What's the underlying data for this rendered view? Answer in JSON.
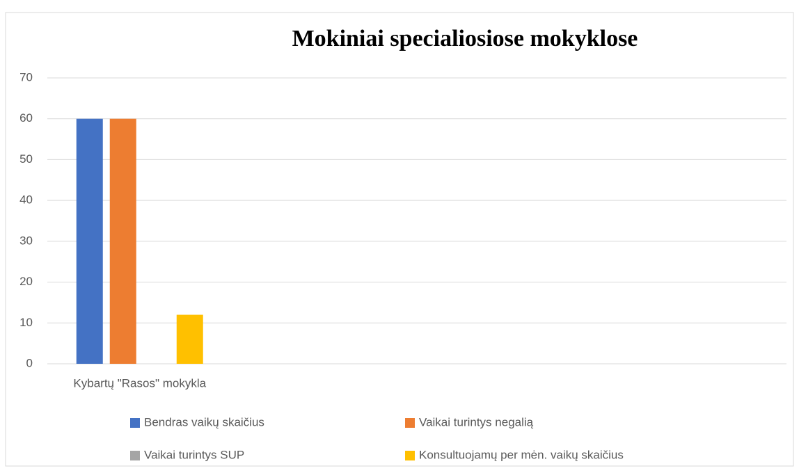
{
  "chart_data": {
    "type": "bar",
    "title": "Mokiniai specialiosiose mokyklose",
    "categories": [
      "Kybartų \"Rasos\" mokykla",
      null,
      null,
      null
    ],
    "series": [
      {
        "name": "Bendras vaikų skaičius",
        "color": "#4472c4",
        "values": [
          60,
          null,
          null,
          null
        ]
      },
      {
        "name": "Vaikai turintys negalią",
        "color": "#ed7d31",
        "values": [
          60,
          null,
          null,
          null
        ]
      },
      {
        "name": "Vaikai turintys SUP",
        "color": "#a5a5a5",
        "values": [
          0,
          null,
          null,
          null
        ]
      },
      {
        "name": "Konsultuojamų per mėn. vaikų skaičius",
        "color": "#ffc000",
        "values": [
          12,
          null,
          null,
          null
        ]
      }
    ],
    "ylim": [
      0,
      70
    ],
    "yticks": [
      0,
      10,
      20,
      30,
      40,
      50,
      60,
      70
    ],
    "grid": true,
    "legend": "bottom"
  }
}
